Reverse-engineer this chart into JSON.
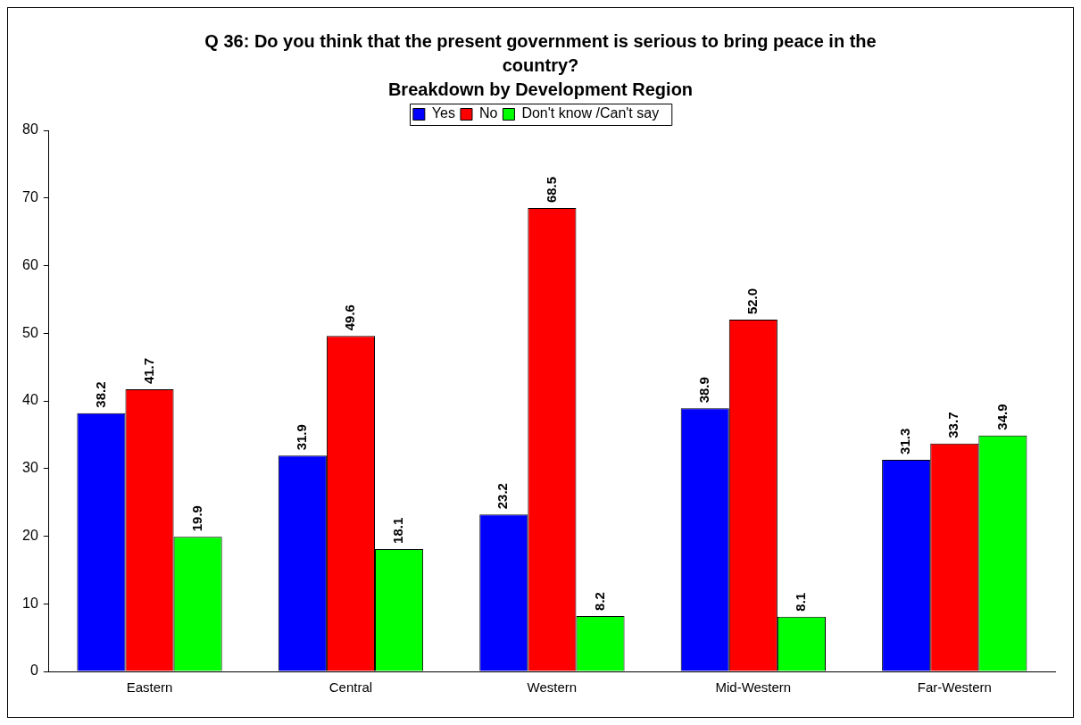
{
  "chart_data": {
    "type": "bar",
    "title": "Q 36: Do you think that the present government is serious to bring peace in the country?",
    "subtitle": "Breakdown by Development Region",
    "categories": [
      "Eastern",
      "Central",
      "Western",
      "Mid-Western",
      "Far-Western"
    ],
    "series": [
      {
        "name": "Yes",
        "color": "#0000ff",
        "values": [
          38.2,
          31.9,
          23.2,
          38.9,
          31.3
        ],
        "value_labels": [
          "38.2",
          "31.9",
          "23.2",
          "38.9",
          "31.3"
        ]
      },
      {
        "name": "No",
        "color": "#ff0000",
        "values": [
          41.7,
          49.6,
          68.5,
          52.0,
          33.7
        ],
        "value_labels": [
          "41.7",
          "49.6",
          "68.5",
          "52.0",
          "33.7"
        ]
      },
      {
        "name": "Don't know /Can't say",
        "color": "#00ff00",
        "values": [
          19.9,
          18.1,
          8.2,
          8.1,
          34.9
        ],
        "value_labels": [
          "19.9",
          "18.1",
          "8.2",
          "8.1",
          "34.9"
        ]
      }
    ],
    "ylim": [
      0,
      80
    ],
    "yticks": [
      0,
      10,
      20,
      30,
      40,
      50,
      60,
      70,
      80
    ],
    "grid": false,
    "legend": "top"
  }
}
